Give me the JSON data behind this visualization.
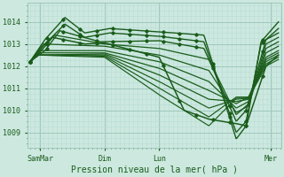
{
  "xlabel": "Pression niveau de la mer( hPa )",
  "bg_color": "#cce8df",
  "line_color": "#1a5c1a",
  "grid_major_color": "#a0c8bc",
  "grid_minor_color": "#b8ddd6",
  "tick_label_color": "#1a5c1a",
  "ylim": [
    1008.3,
    1014.85
  ],
  "yticks": [
    1009,
    1010,
    1011,
    1012,
    1013,
    1014
  ],
  "xtick_labels": [
    "SamMar",
    "Dim",
    "Lun",
    "Mer"
  ],
  "xtick_positions": [
    0.04,
    0.3,
    0.52,
    0.97
  ],
  "lines": [
    {
      "xp": [
        0,
        0.06,
        0.14,
        0.22,
        0.32,
        0.52,
        0.7,
        0.83,
        0.87,
        0.93,
        1.0
      ],
      "yp": [
        1012.2,
        1013.2,
        1014.2,
        1013.5,
        1013.7,
        1013.55,
        1013.4,
        1008.7,
        1009.3,
        1013.1,
        1014.0
      ],
      "lw": 1.0,
      "markers": true
    },
    {
      "xp": [
        0,
        0.06,
        0.14,
        0.22,
        0.32,
        0.52,
        0.7,
        0.83,
        0.87,
        0.93,
        1.0
      ],
      "yp": [
        1012.2,
        1013.0,
        1013.9,
        1013.3,
        1013.5,
        1013.35,
        1013.1,
        1009.0,
        1009.5,
        1013.0,
        1013.7
      ],
      "lw": 1.0,
      "markers": true
    },
    {
      "xp": [
        0,
        0.06,
        0.12,
        0.28,
        0.52,
        0.7,
        0.83,
        0.87,
        0.95,
        1.0
      ],
      "yp": [
        1012.2,
        1012.7,
        1013.6,
        1013.1,
        1013.15,
        1012.8,
        1009.5,
        1010.0,
        1013.2,
        1013.5
      ],
      "lw": 1.0,
      "markers": true
    },
    {
      "xp": [
        0,
        0.05,
        0.1,
        0.3,
        0.52,
        0.72,
        0.83,
        0.88,
        0.95,
        1.0
      ],
      "yp": [
        1012.2,
        1012.9,
        1013.4,
        1013.0,
        1012.8,
        1012.3,
        1009.8,
        1010.3,
        1013.0,
        1013.3
      ],
      "lw": 0.9,
      "markers": false
    },
    {
      "xp": [
        0,
        0.05,
        0.3,
        0.52,
        0.72,
        0.83,
        0.88,
        0.95,
        1.0
      ],
      "yp": [
        1012.2,
        1013.0,
        1012.9,
        1012.5,
        1011.8,
        1009.9,
        1010.2,
        1012.8,
        1013.1
      ],
      "lw": 0.9,
      "markers": false
    },
    {
      "xp": [
        0,
        0.04,
        0.3,
        0.52,
        0.72,
        0.83,
        0.88,
        0.95,
        1.0
      ],
      "yp": [
        1012.2,
        1012.7,
        1012.7,
        1012.2,
        1011.3,
        1010.1,
        1010.4,
        1012.6,
        1012.9
      ],
      "lw": 0.9,
      "markers": false
    },
    {
      "xp": [
        0,
        0.04,
        0.3,
        0.52,
        0.72,
        0.83,
        0.88,
        0.95,
        1.0
      ],
      "yp": [
        1012.2,
        1012.6,
        1012.6,
        1011.9,
        1010.9,
        1010.3,
        1010.6,
        1012.4,
        1012.7
      ],
      "lw": 0.9,
      "markers": false
    },
    {
      "xp": [
        0,
        0.03,
        0.3,
        0.52,
        0.72,
        0.83,
        0.88,
        0.95,
        1.0
      ],
      "yp": [
        1012.2,
        1012.5,
        1012.55,
        1011.6,
        1010.5,
        1010.4,
        1010.5,
        1012.3,
        1012.6
      ],
      "lw": 0.9,
      "markers": false
    },
    {
      "xp": [
        0,
        0.03,
        0.3,
        0.52,
        0.72,
        0.83,
        0.88,
        0.95,
        1.0
      ],
      "yp": [
        1012.2,
        1012.5,
        1012.5,
        1011.3,
        1010.1,
        1010.5,
        1010.55,
        1012.2,
        1012.5
      ],
      "lw": 0.85,
      "markers": false
    },
    {
      "xp": [
        0,
        0.03,
        0.3,
        0.52,
        0.72,
        0.83,
        0.88,
        0.95,
        1.0
      ],
      "yp": [
        1012.2,
        1012.5,
        1012.45,
        1011.0,
        1009.7,
        1010.6,
        1010.6,
        1012.1,
        1012.4
      ],
      "lw": 0.85,
      "markers": false
    },
    {
      "xp": [
        0,
        0.03,
        0.3,
        0.52,
        0.72,
        0.83,
        0.88,
        0.95,
        1.0
      ],
      "yp": [
        1012.2,
        1012.5,
        1012.4,
        1010.7,
        1009.3,
        1010.55,
        1010.55,
        1012.0,
        1012.3
      ],
      "lw": 0.85,
      "markers": false
    },
    {
      "xp": [
        0,
        0.03,
        0.09,
        0.22,
        0.3,
        0.52,
        0.62,
        0.72,
        0.83,
        0.87,
        0.95,
        1.0
      ],
      "yp": [
        1012.2,
        1012.5,
        1013.3,
        1013.0,
        1013.05,
        1012.4,
        1010.0,
        1009.6,
        1009.4,
        1009.3,
        1012.0,
        1012.5
      ],
      "lw": 1.1,
      "markers": true
    }
  ]
}
